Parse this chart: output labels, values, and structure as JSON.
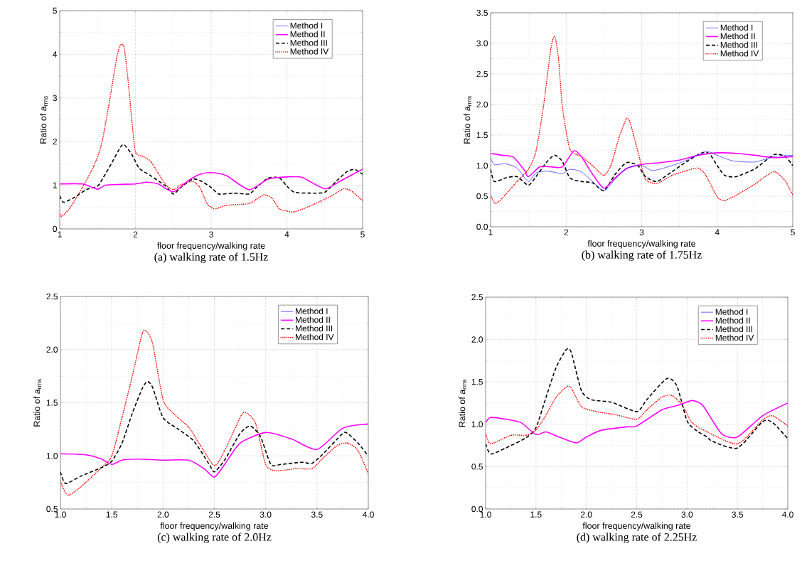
{
  "chart_data": [
    {
      "type": "line",
      "title": "(a) walking rate of 1.5Hz",
      "xlabel": "floor frequency/walking rate",
      "ylabel": "Ratio of a$_{rms}$",
      "xlim": [
        1,
        5
      ],
      "ylim": [
        0,
        5
      ],
      "xticks": [
        1,
        2,
        3,
        4,
        5
      ],
      "yticks": [
        0,
        1,
        2,
        3,
        4,
        5
      ],
      "grid": true,
      "legend": "top right",
      "series": [
        {
          "name": "Method I",
          "color": "#0000ff",
          "line_style": "solid"
        },
        {
          "name": "Method II",
          "color": "#ff00ff",
          "line_style": "solid",
          "x": [
            1,
            1.3,
            1.5,
            1.6,
            1.8,
            2.0,
            2.15,
            2.3,
            2.5,
            2.7,
            2.85,
            3.0,
            3.2,
            3.5,
            3.75,
            4.0,
            4.2,
            4.5,
            4.7,
            5.0
          ],
          "values": [
            1.03,
            1.03,
            0.91,
            1.0,
            1.02,
            1.03,
            1.07,
            1.03,
            0.85,
            1.11,
            1.25,
            1.29,
            1.22,
            0.9,
            1.14,
            1.19,
            1.18,
            0.92,
            1.09,
            1.37
          ]
        },
        {
          "name": "Method III",
          "color": "#000000",
          "line_style": "dashed",
          "x": [
            1,
            1.05,
            1.2,
            1.35,
            1.5,
            1.6,
            1.7,
            1.8,
            1.85,
            1.95,
            2.05,
            2.2,
            2.4,
            2.5,
            2.6,
            2.75,
            2.85,
            3.0,
            3.1,
            3.3,
            3.5,
            3.6,
            3.75,
            3.9,
            4.0,
            4.1,
            4.3,
            4.5,
            4.65,
            4.8,
            4.9,
            5.0
          ],
          "values": [
            0.76,
            0.61,
            0.73,
            0.9,
            0.98,
            1.25,
            1.55,
            1.87,
            1.93,
            1.71,
            1.39,
            1.22,
            0.98,
            0.8,
            0.95,
            1.14,
            1.11,
            0.95,
            0.8,
            0.82,
            0.8,
            0.95,
            1.16,
            1.17,
            0.98,
            0.84,
            0.82,
            0.84,
            1.09,
            1.32,
            1.36,
            1.25
          ]
        },
        {
          "name": "Method IV",
          "color": "#ff0000",
          "line_style": "dotted",
          "x": [
            1,
            1.03,
            1.15,
            1.3,
            1.45,
            1.55,
            1.65,
            1.75,
            1.8,
            1.85,
            1.9,
            1.95,
            2.0,
            2.1,
            2.2,
            2.3,
            2.4,
            2.5,
            2.6,
            2.75,
            2.85,
            2.95,
            3.05,
            3.2,
            3.5,
            3.6,
            3.7,
            3.8,
            3.9,
            4.0,
            4.1,
            4.3,
            4.5,
            4.65,
            4.75,
            4.85,
            5.0
          ],
          "values": [
            0.37,
            0.29,
            0.52,
            0.95,
            1.44,
            1.93,
            2.85,
            3.89,
            4.21,
            4.16,
            3.45,
            2.53,
            1.77,
            1.66,
            1.55,
            1.28,
            1.01,
            0.9,
            1.01,
            1.09,
            0.95,
            0.57,
            0.46,
            0.54,
            0.58,
            0.68,
            0.78,
            0.71,
            0.46,
            0.41,
            0.39,
            0.52,
            0.68,
            0.82,
            0.92,
            0.87,
            0.65
          ]
        }
      ]
    },
    {
      "type": "line",
      "title": "(b) walking rate of 1.75Hz",
      "xlabel": "floor frequency/walking rate",
      "ylabel": "Ratio of a$_{rms}$",
      "xlim": [
        1,
        5
      ],
      "ylim": [
        0,
        3.5
      ],
      "xticks": [
        1,
        2,
        3,
        4,
        5
      ],
      "yticks": [
        {
          "value": 0,
          "label": "0.0"
        },
        0.5,
        {
          "value": 1,
          "label": "1.0"
        },
        1.5,
        {
          "value": 2,
          "label": "2.0"
        },
        2.5,
        {
          "value": 3,
          "label": "3.0"
        },
        3.5
      ],
      "grid": true,
      "legend": "top right",
      "series": [
        {
          "name": "Method I",
          "color": "#0000ff",
          "line_style": "solid",
          "x": [
            1,
            1.05,
            1.2,
            1.35,
            1.5,
            1.6,
            1.75,
            1.95,
            2.05,
            2.2,
            2.35,
            2.5,
            2.65,
            2.8,
            3.0,
            3.15,
            3.4,
            3.6,
            3.85,
            4.0,
            4.2,
            4.5,
            4.75,
            5.0
          ],
          "values": [
            1.13,
            1.02,
            1.03,
            0.96,
            0.74,
            0.88,
            0.91,
            0.87,
            0.94,
            0.9,
            0.74,
            0.59,
            0.78,
            0.96,
            1.0,
            0.92,
            1.0,
            1.09,
            1.23,
            1.17,
            1.08,
            1.06,
            1.15,
            1.17
          ]
        },
        {
          "name": "Method II",
          "color": "#ff00ff",
          "line_style": "solid",
          "x": [
            1,
            1.15,
            1.3,
            1.45,
            1.5,
            1.65,
            1.8,
            1.95,
            2.1,
            2.2,
            2.35,
            2.5,
            2.65,
            2.8,
            3.0,
            3.25,
            3.5,
            3.75,
            4.0,
            4.25,
            4.5,
            4.75,
            5.0
          ],
          "values": [
            1.2,
            1.17,
            1.14,
            0.92,
            0.82,
            0.98,
            0.98,
            0.98,
            1.24,
            1.15,
            0.86,
            0.63,
            0.8,
            0.95,
            1.02,
            1.05,
            1.09,
            1.17,
            1.21,
            1.2,
            1.17,
            1.13,
            1.15
          ]
        },
        {
          "name": "Method III",
          "color": "#000000",
          "line_style": "dashed",
          "x": [
            1,
            1.05,
            1.2,
            1.35,
            1.5,
            1.6,
            1.75,
            1.85,
            1.95,
            2.05,
            2.2,
            2.35,
            2.5,
            2.65,
            2.8,
            2.95,
            3.05,
            3.2,
            3.4,
            3.6,
            3.8,
            3.9,
            4.0,
            4.1,
            4.25,
            4.5,
            4.75,
            4.9,
            5.0
          ],
          "values": [
            0.94,
            0.74,
            0.8,
            0.82,
            0.68,
            0.82,
            1.07,
            1.17,
            1.07,
            0.8,
            0.74,
            0.72,
            0.59,
            0.86,
            1.05,
            1.0,
            0.82,
            0.74,
            0.9,
            1.07,
            1.21,
            1.19,
            1.0,
            0.84,
            0.82,
            0.95,
            1.18,
            1.15,
            1.0
          ]
        },
        {
          "name": "Method IV",
          "color": "#ff0000",
          "line_style": "dotted",
          "x": [
            1,
            1.07,
            1.2,
            1.35,
            1.5,
            1.6,
            1.7,
            1.8,
            1.85,
            1.9,
            1.95,
            2.05,
            2.2,
            2.35,
            2.5,
            2.6,
            2.7,
            2.8,
            2.85,
            2.95,
            3.05,
            3.2,
            3.4,
            3.6,
            3.75,
            3.85,
            4.0,
            4.1,
            4.3,
            4.5,
            4.75,
            4.9,
            5.0
          ],
          "values": [
            0.51,
            0.38,
            0.53,
            0.74,
            0.94,
            1.23,
            1.97,
            2.93,
            3.11,
            2.74,
            1.97,
            1.27,
            1.15,
            1.0,
            0.84,
            1.03,
            1.46,
            1.77,
            1.69,
            1.23,
            0.78,
            0.71,
            0.84,
            0.92,
            0.96,
            0.84,
            0.49,
            0.43,
            0.55,
            0.7,
            0.9,
            0.75,
            0.52
          ]
        }
      ]
    },
    {
      "type": "line",
      "title": "(c) walking rate of 2.0Hz",
      "xlabel": "floor frequency/walking rate",
      "ylabel": "Ratio of a$_{rms}$",
      "xlim": [
        1,
        4
      ],
      "ylim": [
        0.5,
        2.5
      ],
      "xticks": [
        {
          "value": 1,
          "label": "1.0"
        },
        1.5,
        {
          "value": 2,
          "label": "2.0"
        },
        2.5,
        {
          "value": 3,
          "label": "3.0"
        },
        3.5,
        {
          "value": 4,
          "label": "4.0"
        }
      ],
      "yticks": [
        0.5,
        {
          "value": 1,
          "label": "1.0"
        },
        1.5,
        {
          "value": 2,
          "label": "2.0"
        },
        2.5
      ],
      "grid": true,
      "legend": "top right",
      "series": [
        {
          "name": "Method I",
          "color": "#0000ff",
          "line_style": "solid"
        },
        {
          "name": "Method II",
          "color": "#ff00ff",
          "line_style": "solid",
          "x": [
            1,
            1.25,
            1.4,
            1.5,
            1.6,
            1.75,
            2.0,
            2.25,
            2.4,
            2.5,
            2.6,
            2.75,
            3.0,
            3.25,
            3.5,
            3.75,
            4.0
          ],
          "values": [
            1.02,
            1.01,
            0.97,
            0.92,
            0.96,
            0.97,
            0.96,
            0.96,
            0.88,
            0.8,
            0.92,
            1.12,
            1.22,
            1.16,
            1.06,
            1.26,
            1.3
          ]
        },
        {
          "name": "Method III",
          "color": "#000000",
          "line_style": "dashed",
          "x": [
            1,
            1.05,
            1.2,
            1.4,
            1.5,
            1.6,
            1.7,
            1.8,
            1.85,
            1.9,
            2.0,
            2.15,
            2.3,
            2.45,
            2.5,
            2.6,
            2.75,
            2.85,
            2.95,
            3.05,
            3.15,
            3.35,
            3.45,
            3.55,
            3.75,
            3.8,
            3.9,
            4.0
          ],
          "values": [
            0.85,
            0.74,
            0.81,
            0.89,
            0.95,
            1.12,
            1.4,
            1.64,
            1.7,
            1.64,
            1.36,
            1.25,
            1.14,
            0.92,
            0.85,
            0.96,
            1.21,
            1.28,
            1.18,
            0.92,
            0.92,
            0.94,
            0.93,
            1.01,
            1.21,
            1.21,
            1.12,
            1.0
          ]
        },
        {
          "name": "Method IV",
          "color": "#ff0000",
          "line_style": "dotted",
          "x": [
            1,
            1.07,
            1.2,
            1.4,
            1.5,
            1.6,
            1.7,
            1.8,
            1.85,
            1.9,
            2.0,
            2.1,
            2.25,
            2.35,
            2.5,
            2.6,
            2.75,
            2.8,
            2.9,
            3.0,
            3.1,
            3.3,
            3.45,
            3.55,
            3.7,
            3.8,
            3.9,
            4.0
          ],
          "values": [
            0.76,
            0.63,
            0.71,
            0.89,
            1.0,
            1.36,
            1.75,
            2.16,
            2.16,
            2.05,
            1.53,
            1.4,
            1.27,
            1.12,
            0.91,
            1.05,
            1.36,
            1.41,
            1.31,
            0.92,
            0.86,
            0.88,
            0.88,
            0.97,
            1.1,
            1.12,
            1.05,
            0.83
          ]
        }
      ]
    },
    {
      "type": "line",
      "title": "(d) walking rate of 2.25Hz",
      "xlabel": "floor frequency/walking rate",
      "ylabel": "Ratio of a$_{rms}$",
      "xlim": [
        1,
        4
      ],
      "ylim": [
        0,
        2.5
      ],
      "xticks": [
        {
          "value": 1,
          "label": "1.0"
        },
        1.5,
        {
          "value": 2,
          "label": "2.0"
        },
        2.5,
        {
          "value": 3,
          "label": "3.0"
        },
        3.5,
        {
          "value": 4,
          "label": "4.0"
        }
      ],
      "yticks": [
        {
          "value": 0,
          "label": "0.0"
        },
        0.5,
        {
          "value": 1,
          "label": "1.0"
        },
        1.5,
        {
          "value": 2,
          "label": "2.0"
        },
        2.5
      ],
      "grid": true,
      "legend": "top right",
      "series": [
        {
          "name": "Method I",
          "color": "#0000ff",
          "line_style": "solid"
        },
        {
          "name": "Method II",
          "color": "#ff00ff",
          "line_style": "solid",
          "x": [
            1,
            1.05,
            1.2,
            1.35,
            1.5,
            1.6,
            1.75,
            1.9,
            2.0,
            2.15,
            2.4,
            2.5,
            2.75,
            2.9,
            3.05,
            3.15,
            3.25,
            3.35,
            3.5,
            3.75,
            4.0
          ],
          "values": [
            1.02,
            1.08,
            1.06,
            1.02,
            0.88,
            0.91,
            0.84,
            0.78,
            0.85,
            0.93,
            0.97,
            0.98,
            1.17,
            1.22,
            1.28,
            1.23,
            1.05,
            0.88,
            0.85,
            1.1,
            1.25
          ]
        },
        {
          "name": "Method III",
          "color": "#000000",
          "line_style": "dashed",
          "x": [
            1,
            1.05,
            1.2,
            1.4,
            1.5,
            1.6,
            1.7,
            1.8,
            1.85,
            1.95,
            2.05,
            2.25,
            2.5,
            2.6,
            2.8,
            2.9,
            3.0,
            3.1,
            3.2,
            3.25,
            3.5,
            3.75,
            3.85,
            4.0
          ],
          "values": [
            0.77,
            0.65,
            0.72,
            0.84,
            0.96,
            1.32,
            1.67,
            1.88,
            1.85,
            1.4,
            1.29,
            1.26,
            1.15,
            1.29,
            1.54,
            1.45,
            1.04,
            0.92,
            0.85,
            0.8,
            0.72,
            1.03,
            1.02,
            0.83
          ]
        },
        {
          "name": "Method IV",
          "color": "#ff0000",
          "line_style": "dotted",
          "x": [
            1,
            1.05,
            1.25,
            1.4,
            1.5,
            1.6,
            1.7,
            1.8,
            1.85,
            1.95,
            2.1,
            2.3,
            2.5,
            2.6,
            2.75,
            2.85,
            2.95,
            3.05,
            3.2,
            3.5,
            3.75,
            3.85,
            4.0
          ],
          "values": [
            0.89,
            0.77,
            0.87,
            0.87,
            0.93,
            1.11,
            1.32,
            1.44,
            1.43,
            1.21,
            1.15,
            1.11,
            1.06,
            1.17,
            1.32,
            1.34,
            1.23,
            1.02,
            0.91,
            0.77,
            1.05,
            1.1,
            0.98
          ]
        }
      ]
    }
  ]
}
